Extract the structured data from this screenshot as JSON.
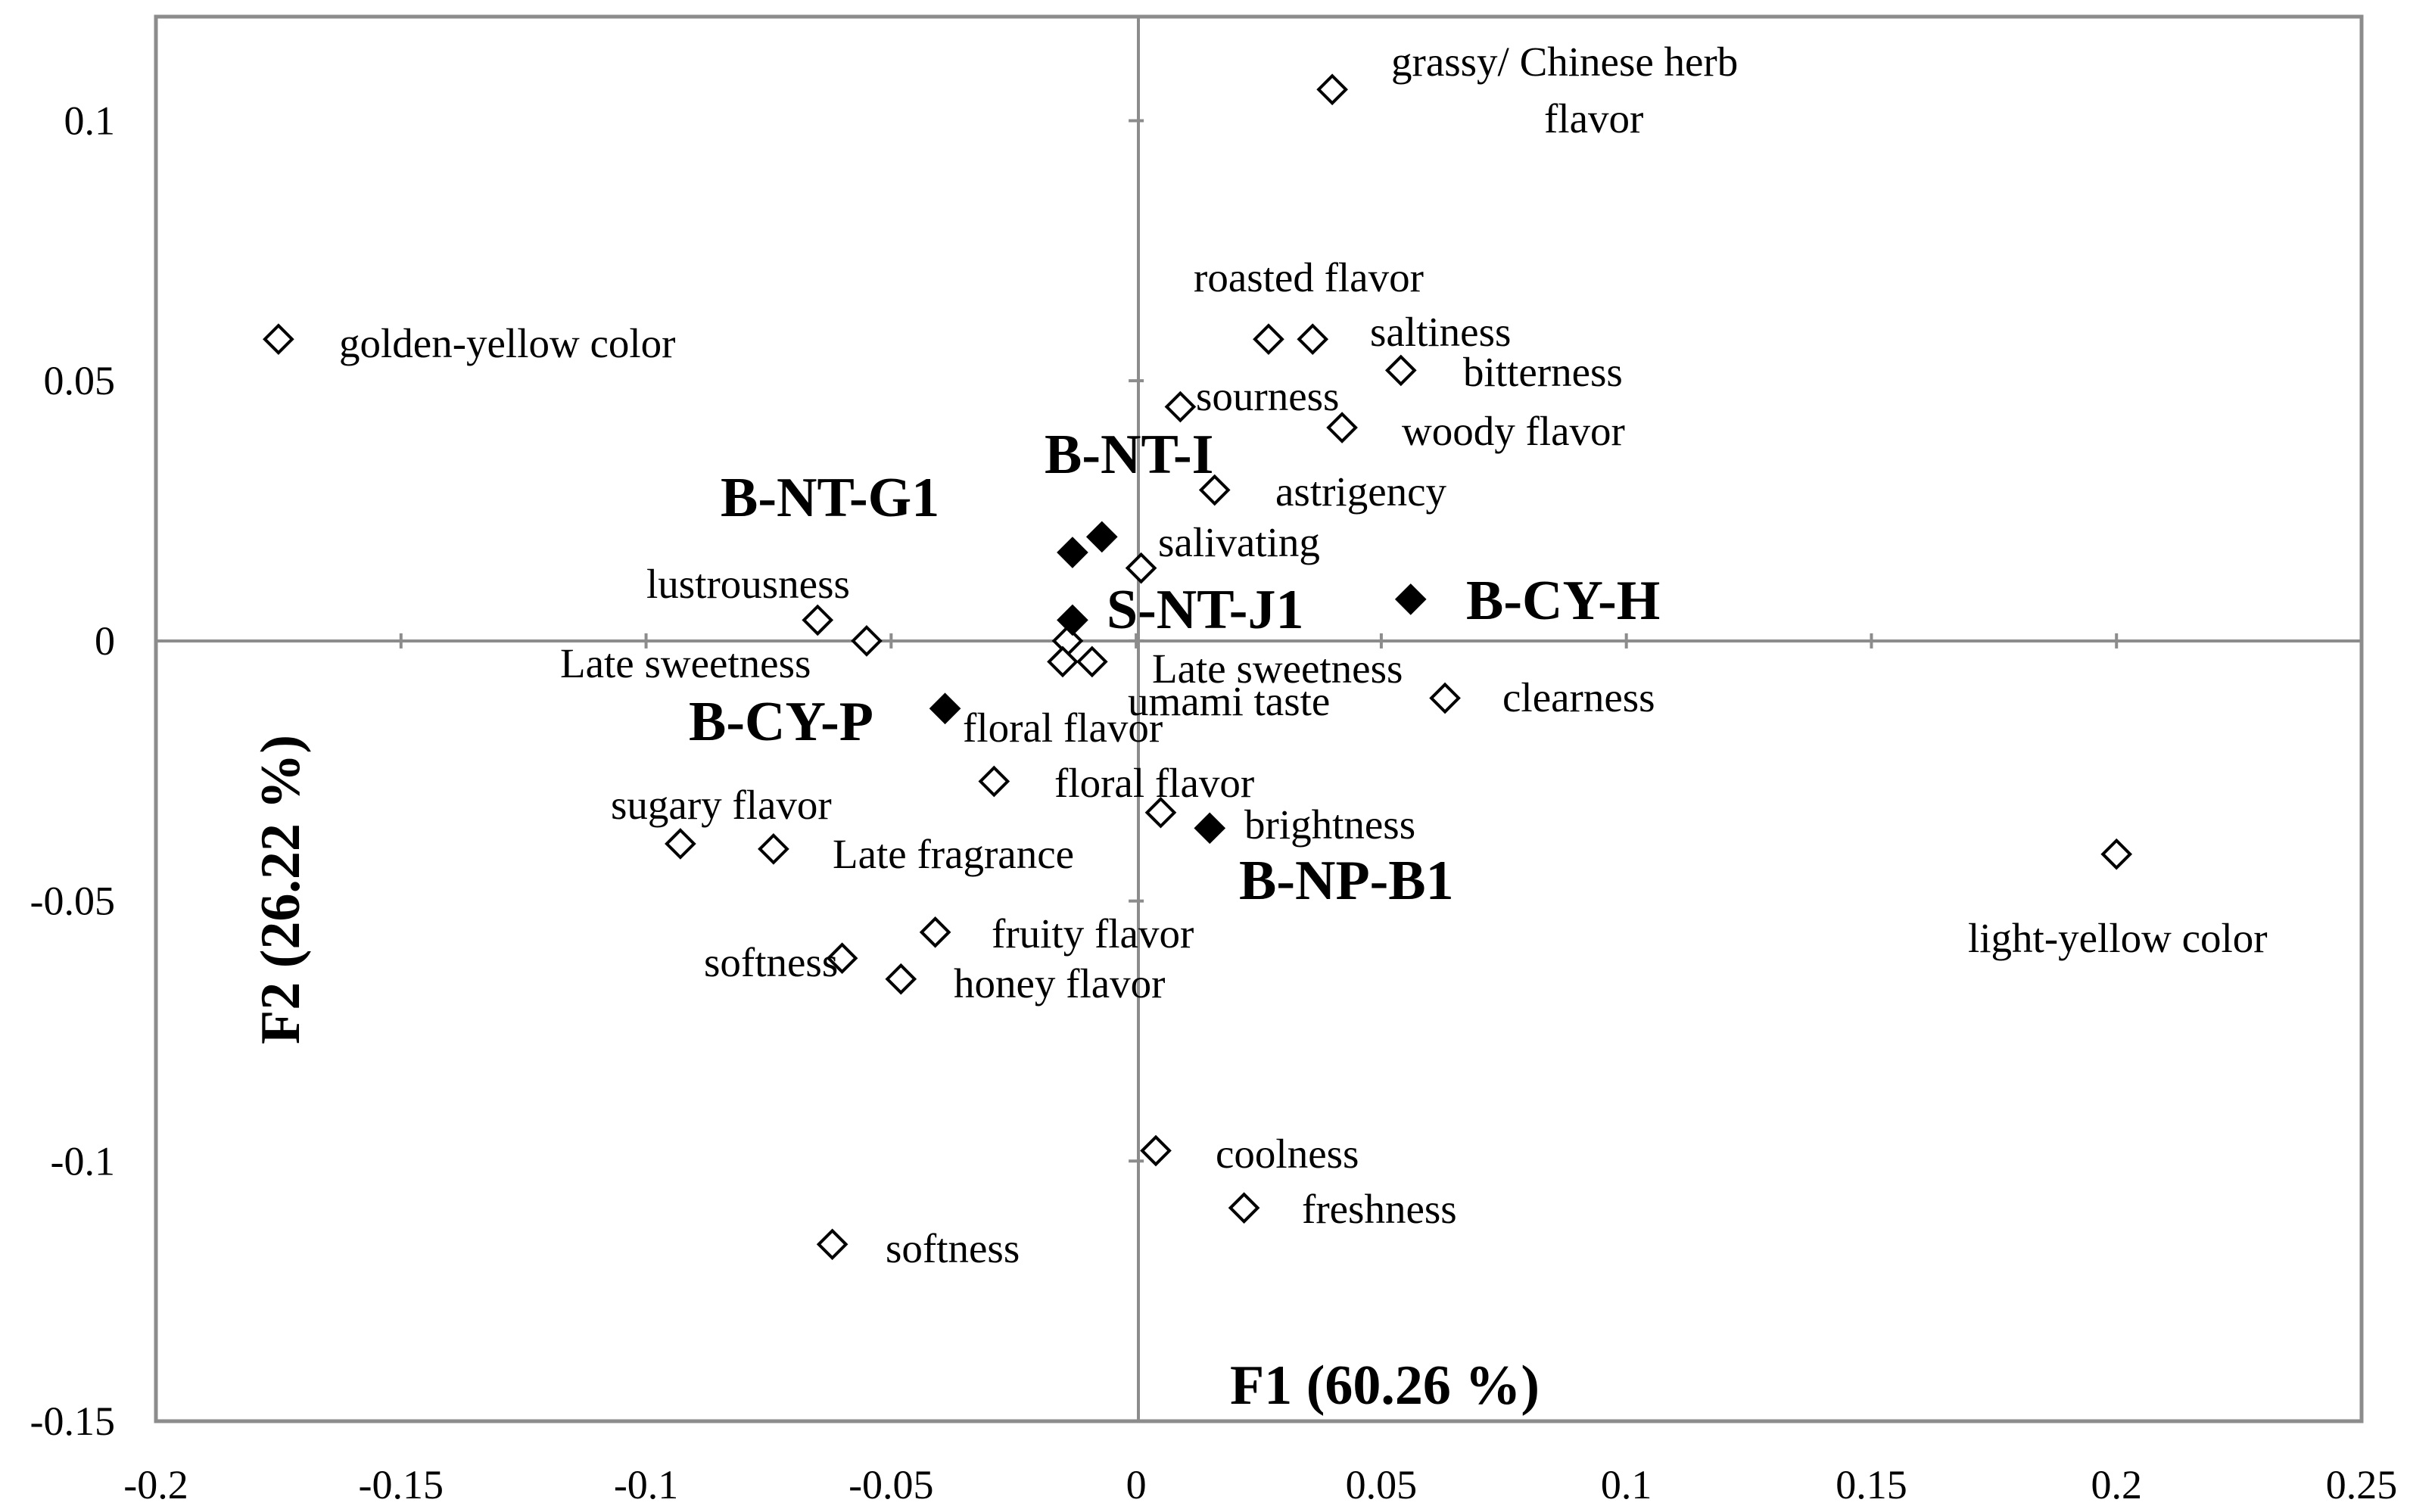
{
  "chart_data": {
    "type": "scatter",
    "title": "",
    "xlabel": "F1 (60.26 %)",
    "ylabel": "F2 (26.22 %)",
    "xlim": [
      -0.2,
      0.25
    ],
    "ylim": [
      -0.15,
      0.12
    ],
    "grid": false,
    "x_ticks": [
      "-0.2",
      "-0.15",
      "-0.1",
      "-0.05",
      "0",
      "0.05",
      "0.1",
      "0.15",
      "0.2",
      "0.25"
    ],
    "y_ticks": [
      "-0.15",
      "-0.1",
      "-0.05",
      "0",
      "0.05",
      "0.1"
    ],
    "series": [
      {
        "marker": "open-diamond",
        "points": [
          {
            "x": 0.04,
            "y": 0.106,
            "label": "grassy/ Chinese herb flavor"
          },
          {
            "x": -0.175,
            "y": 0.058,
            "label": "golden-yellow color"
          },
          {
            "x": 0.027,
            "y": 0.058,
            "label": "roasted flavor"
          },
          {
            "x": 0.036,
            "y": 0.058,
            "label": "saltiness"
          },
          {
            "x": 0.054,
            "y": 0.052,
            "label": "bitterness"
          },
          {
            "x": 0.009,
            "y": 0.045,
            "label": "sourness"
          },
          {
            "x": 0.042,
            "y": 0.041,
            "label": "woody flavor"
          },
          {
            "x": 0.016,
            "y": 0.029,
            "label": "astrigency"
          },
          {
            "x": 0.001,
            "y": 0.014,
            "label": "salivating"
          },
          {
            "x": -0.065,
            "y": 0.004,
            "label": "lustrousness"
          },
          {
            "x": -0.055,
            "y": 0.0,
            "label": "Late sweetness"
          },
          {
            "x": -0.014,
            "y": 0.0,
            "label": ""
          },
          {
            "x": -0.015,
            "y": -0.004,
            "label": "umami taste"
          },
          {
            "x": -0.009,
            "y": -0.004,
            "label": "Late sweetness"
          },
          {
            "x": 0.063,
            "y": -0.011,
            "label": "clearness"
          },
          {
            "x": -0.029,
            "y": -0.027,
            "label": "floral flavor"
          },
          {
            "x": 0.005,
            "y": -0.033,
            "label": ""
          },
          {
            "x": -0.093,
            "y": -0.039,
            "label": "sugary flavor"
          },
          {
            "x": -0.074,
            "y": -0.04,
            "label": "Late fragrance"
          },
          {
            "x": 0.2,
            "y": -0.041,
            "label": "light-yellow color"
          },
          {
            "x": -0.041,
            "y": -0.056,
            "label": "fruity flavor"
          },
          {
            "x": -0.06,
            "y": -0.061,
            "label": "softness"
          },
          {
            "x": -0.048,
            "y": -0.065,
            "label": "honey flavor"
          },
          {
            "x": 0.004,
            "y": -0.098,
            "label": "coolness"
          },
          {
            "x": 0.022,
            "y": -0.109,
            "label": "freshness"
          },
          {
            "x": -0.062,
            "y": -0.116,
            "label": "softness"
          }
        ]
      },
      {
        "marker": "filled-diamond",
        "points": [
          {
            "x": -0.013,
            "y": 0.017,
            "label": "B-NT-G1"
          },
          {
            "x": -0.007,
            "y": 0.02,
            "label": "B-NT-I"
          },
          {
            "x": -0.013,
            "y": 0.004,
            "label": "S-NT-J1"
          },
          {
            "x": 0.056,
            "y": 0.008,
            "label": "B-CY-H"
          },
          {
            "x": -0.039,
            "y": -0.013,
            "label": "B-CY-P"
          },
          {
            "x": 0.015,
            "y": -0.036,
            "label": "B-NP-B1"
          }
        ]
      }
    ],
    "annotations": [
      {
        "text": "grassy/ Chinese herb",
        "group": "attr",
        "for": "grassy/ Chinese herb flavor"
      },
      {
        "text": "flavor",
        "group": "attr",
        "for": "grassy/ Chinese herb flavor"
      },
      {
        "text": "golden-yellow color",
        "group": "attr"
      },
      {
        "text": "roasted flavor",
        "group": "attr"
      },
      {
        "text": "saltiness",
        "group": "attr"
      },
      {
        "text": "bitterness",
        "group": "attr"
      },
      {
        "text": "sourness",
        "group": "attr"
      },
      {
        "text": "woody flavor",
        "group": "attr"
      },
      {
        "text": "astrigency",
        "group": "attr"
      },
      {
        "text": "salivating",
        "group": "attr"
      },
      {
        "text": "lustrousness",
        "group": "attr"
      },
      {
        "text": "Late sweetness",
        "group": "attr"
      },
      {
        "text": "Late sweetness",
        "group": "attr"
      },
      {
        "text": "umami taste",
        "group": "attr"
      },
      {
        "text": "clearness",
        "group": "attr"
      },
      {
        "text": "floral flavor",
        "group": "attr"
      },
      {
        "text": "floral flavor",
        "group": "attr"
      },
      {
        "text": "brightness",
        "group": "attr"
      },
      {
        "text": "sugary flavor",
        "group": "attr"
      },
      {
        "text": "Late fragrance",
        "group": "attr"
      },
      {
        "text": "light-yellow color",
        "group": "attr"
      },
      {
        "text": "fruity flavor",
        "group": "attr"
      },
      {
        "text": "softness",
        "group": "attr"
      },
      {
        "text": "honey flavor",
        "group": "attr"
      },
      {
        "text": "coolness",
        "group": "attr"
      },
      {
        "text": "freshness",
        "group": "attr"
      },
      {
        "text": "softness",
        "group": "attr"
      },
      {
        "text": "B-NT-G1",
        "group": "sample"
      },
      {
        "text": "B-NT-I",
        "group": "sample"
      },
      {
        "text": "S-NT-J1",
        "group": "sample"
      },
      {
        "text": "B-CY-H",
        "group": "sample"
      },
      {
        "text": "B-CY-P",
        "group": "sample"
      },
      {
        "text": "B-NP-B1",
        "group": "sample"
      }
    ],
    "colors": {
      "axis": "#8c8c8c",
      "marker": "#000000",
      "text": "#000000"
    }
  }
}
